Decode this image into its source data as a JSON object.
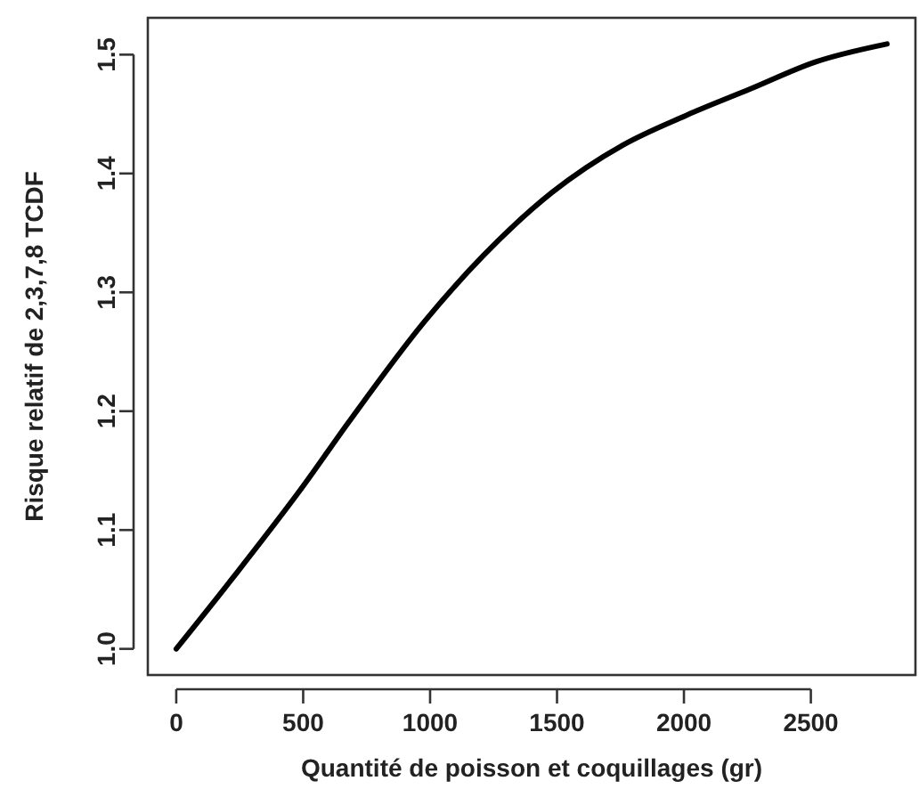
{
  "chart_data": {
    "type": "line",
    "xlabel": "Quantité de poisson et coquillages (gr)",
    "ylabel": "Risque relatif de 2,3,7,8 TCDF",
    "x": [
      0,
      220,
      500,
      680,
      980,
      1210,
      1480,
      1760,
      2010,
      2260,
      2520,
      2800
    ],
    "series": [
      {
        "color": "#000000",
        "values": [
          1.0,
          1.059,
          1.137,
          1.191,
          1.276,
          1.331,
          1.384,
          1.424,
          1.449,
          1.471,
          1.494,
          1.509
        ]
      }
    ],
    "xlim": [
      -112,
      2912
    ],
    "ylim": [
      0.978,
      1.531
    ],
    "xticks": [
      0,
      500,
      1000,
      1500,
      2000,
      2500
    ],
    "yticks": [
      {
        "value": 1.0,
        "label": "1.0"
      },
      1.1,
      1.2,
      1.3,
      1.4,
      1.5
    ],
    "marker": "none",
    "line_style": "solid"
  }
}
